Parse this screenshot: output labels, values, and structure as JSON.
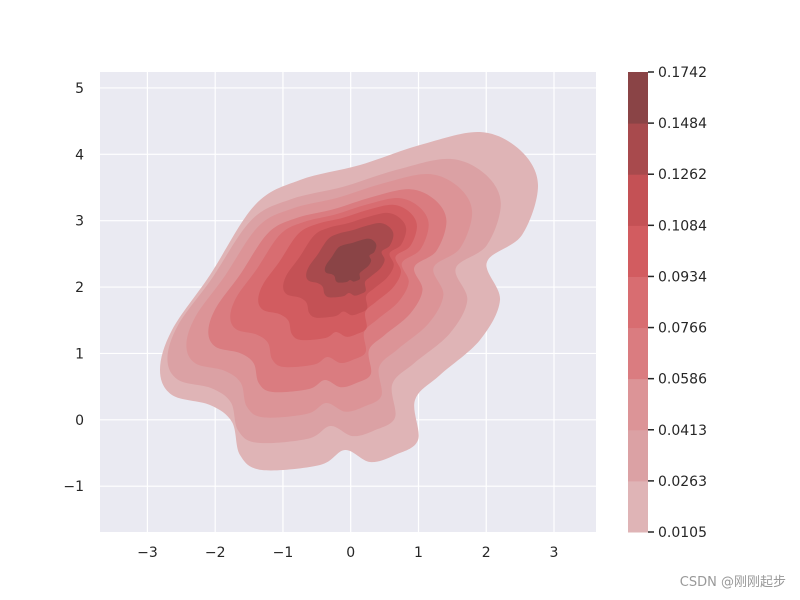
{
  "chart_data": {
    "type": "kde-contour",
    "title": "",
    "xlabel": "",
    "ylabel": "",
    "xlim": [
      -3.7,
      3.62
    ],
    "ylim": [
      -1.69,
      5.24
    ],
    "x_ticks": [
      "−3",
      "−2",
      "−1",
      "0",
      "1",
      "2",
      "3"
    ],
    "x_tick_values": [
      -3,
      -2,
      -1,
      0,
      1,
      2,
      3
    ],
    "y_ticks": [
      "−1",
      "0",
      "1",
      "2",
      "3",
      "4",
      "5"
    ],
    "y_tick_values": [
      -1,
      0,
      1,
      2,
      3,
      4,
      5
    ],
    "grid": true,
    "background": "#eaeaf2",
    "peak_location": [
      0,
      2.4
    ],
    "colorbar": {
      "levels": [
        "0.0105",
        "0.0263",
        "0.0413",
        "0.0586",
        "0.0766",
        "0.0934",
        "0.1084",
        "0.1262",
        "0.1484",
        "0.1742"
      ],
      "level_values": [
        0.0105,
        0.0263,
        0.0413,
        0.0586,
        0.0766,
        0.0934,
        0.1084,
        0.1262,
        0.1484,
        0.1742
      ],
      "colors": [
        "#dfb4b6",
        "#dba1a4",
        "#dc9497",
        "#da7c80",
        "#d86d71",
        "#d25c60",
        "#c45155",
        "#a84a4d",
        "#8a4446"
      ]
    }
  },
  "watermark": "CSDN @刚刚起步"
}
